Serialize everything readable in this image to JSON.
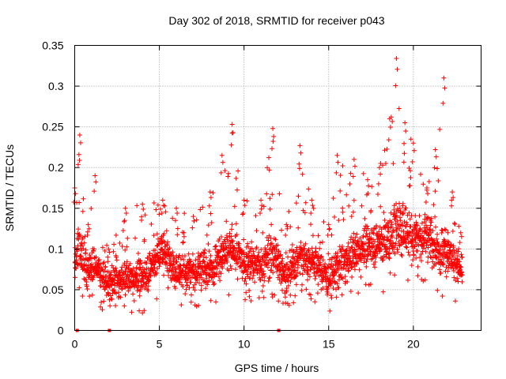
{
  "chart_data": {
    "type": "scatter",
    "title": "Day 302 of 2018, SRMTID for receiver p043",
    "xlabel": "GPS time / hours",
    "ylabel": "SRMTID / TECUs",
    "xlim": [
      0,
      24
    ],
    "ylim": [
      0,
      0.35
    ],
    "xticks": [
      0,
      5,
      10,
      15,
      20
    ],
    "xtick_labels": [
      "0",
      "5",
      "10",
      "15",
      "20"
    ],
    "yticks": [
      0,
      0.05,
      0.1,
      0.15,
      0.2,
      0.25,
      0.3,
      0.35
    ],
    "ytick_labels": [
      "0",
      "0.05",
      "0.1",
      "0.15",
      "0.2",
      "0.25",
      "0.3",
      "0.35"
    ],
    "grid": true,
    "marker": "plus",
    "series_color": "#ff0000",
    "envelope": [
      {
        "t": 0.0,
        "base": 0.08,
        "spread": 0.05,
        "peak": 0.175
      },
      {
        "t": 0.3,
        "base": 0.1,
        "spread": 0.06,
        "peak": 0.24
      },
      {
        "t": 0.8,
        "base": 0.075,
        "spread": 0.035,
        "peak": 0.13
      },
      {
        "t": 1.2,
        "base": 0.08,
        "spread": 0.04,
        "peak": 0.19
      },
      {
        "t": 2.0,
        "base": 0.055,
        "spread": 0.03,
        "peak": 0.1
      },
      {
        "t": 3.0,
        "base": 0.065,
        "spread": 0.035,
        "peak": 0.15
      },
      {
        "t": 4.0,
        "base": 0.065,
        "spread": 0.04,
        "peak": 0.155
      },
      {
        "t": 5.2,
        "base": 0.1,
        "spread": 0.045,
        "peak": 0.16
      },
      {
        "t": 6.0,
        "base": 0.07,
        "spread": 0.04,
        "peak": 0.15
      },
      {
        "t": 7.0,
        "base": 0.075,
        "spread": 0.04,
        "peak": 0.14
      },
      {
        "t": 8.0,
        "base": 0.08,
        "spread": 0.04,
        "peak": 0.17
      },
      {
        "t": 8.7,
        "base": 0.09,
        "spread": 0.045,
        "peak": 0.215
      },
      {
        "t": 9.3,
        "base": 0.1,
        "spread": 0.05,
        "peak": 0.253
      },
      {
        "t": 10.0,
        "base": 0.085,
        "spread": 0.04,
        "peak": 0.16
      },
      {
        "t": 11.0,
        "base": 0.08,
        "spread": 0.04,
        "peak": 0.16
      },
      {
        "t": 11.7,
        "base": 0.095,
        "spread": 0.05,
        "peak": 0.248
      },
      {
        "t": 12.5,
        "base": 0.065,
        "spread": 0.035,
        "peak": 0.13
      },
      {
        "t": 13.3,
        "base": 0.095,
        "spread": 0.045,
        "peak": 0.227
      },
      {
        "t": 14.0,
        "base": 0.085,
        "spread": 0.04,
        "peak": 0.16
      },
      {
        "t": 15.0,
        "base": 0.065,
        "spread": 0.035,
        "peak": 0.13
      },
      {
        "t": 15.5,
        "base": 0.075,
        "spread": 0.04,
        "peak": 0.215
      },
      {
        "t": 16.5,
        "base": 0.095,
        "spread": 0.045,
        "peak": 0.21
      },
      {
        "t": 17.3,
        "base": 0.105,
        "spread": 0.045,
        "peak": 0.185
      },
      {
        "t": 18.0,
        "base": 0.11,
        "spread": 0.05,
        "peak": 0.2
      },
      {
        "t": 18.6,
        "base": 0.11,
        "spread": 0.06,
        "peak": 0.26
      },
      {
        "t": 19.0,
        "base": 0.13,
        "spread": 0.07,
        "peak": 0.334
      },
      {
        "t": 19.5,
        "base": 0.12,
        "spread": 0.06,
        "peak": 0.255
      },
      {
        "t": 20.0,
        "base": 0.115,
        "spread": 0.05,
        "peak": 0.23
      },
      {
        "t": 20.8,
        "base": 0.12,
        "spread": 0.05,
        "peak": 0.175
      },
      {
        "t": 21.3,
        "base": 0.105,
        "spread": 0.05,
        "peak": 0.222
      },
      {
        "t": 21.8,
        "base": 0.1,
        "spread": 0.05,
        "peak": 0.31
      },
      {
        "t": 22.3,
        "base": 0.085,
        "spread": 0.045,
        "peak": 0.17
      },
      {
        "t": 22.8,
        "base": 0.075,
        "spread": 0.035,
        "peak": 0.12
      }
    ],
    "zero_points": [
      0.15,
      2.05,
      12.05
    ],
    "samples_per_hour": 110,
    "t_end": 22.9
  }
}
